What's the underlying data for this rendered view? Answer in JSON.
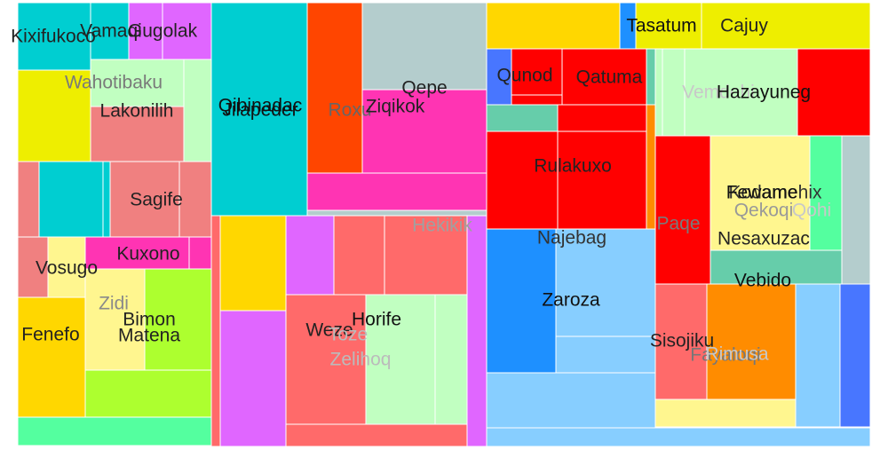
{
  "chart_data": {
    "type": "treemap",
    "title": "",
    "blocks": [
      {
        "id": "b01",
        "color": "#00CED1"
      },
      {
        "id": "b02",
        "color": "#00CED1"
      },
      {
        "id": "b03",
        "color": "#E066FF"
      },
      {
        "id": "b04",
        "color": "#E066FF"
      },
      {
        "id": "b05",
        "color": "#EEEE00"
      },
      {
        "id": "b06",
        "color": "#C1FFC1"
      },
      {
        "id": "b07",
        "color": "#C1FFC1"
      },
      {
        "id": "b08",
        "color": "#F08080"
      },
      {
        "id": "b09",
        "color": "#F08080"
      },
      {
        "id": "b10",
        "color": "#00CED1"
      },
      {
        "id": "b11",
        "color": "#00CED1"
      },
      {
        "id": "b12",
        "color": "#F08080"
      },
      {
        "id": "b13",
        "color": "#F08080"
      },
      {
        "id": "b14",
        "color": "#F08080"
      },
      {
        "id": "b15",
        "color": "#FFF68F"
      },
      {
        "id": "b16",
        "color": "#FF34B3"
      },
      {
        "id": "b17",
        "color": "#FF34B3"
      },
      {
        "id": "b18",
        "color": "#FFD700"
      },
      {
        "id": "b19",
        "color": "#FFF68F"
      },
      {
        "id": "b20",
        "color": "#ADFF2F"
      },
      {
        "id": "b21",
        "color": "#ADFF2F"
      },
      {
        "id": "b22",
        "color": "#54FF9F"
      },
      {
        "id": "b23",
        "color": "#00CED1"
      },
      {
        "id": "b24",
        "color": "#FF4500"
      },
      {
        "id": "b25",
        "color": "#B4CDCD"
      },
      {
        "id": "b26",
        "color": "#FF34B3"
      },
      {
        "id": "b27",
        "color": "#FF34B3"
      },
      {
        "id": "b28",
        "color": "#B4CDCD"
      },
      {
        "id": "b29",
        "color": "#FF6A6A"
      },
      {
        "id": "b30",
        "color": "#FFD700"
      },
      {
        "id": "b31",
        "color": "#E066FF"
      },
      {
        "id": "b32",
        "color": "#E066FF"
      },
      {
        "id": "b33",
        "color": "#FF6A6A"
      },
      {
        "id": "b34",
        "color": "#FF6A6A"
      },
      {
        "id": "b35",
        "color": "#FF6A6A"
      },
      {
        "id": "b36",
        "color": "#C1FFC1"
      },
      {
        "id": "b37",
        "color": "#C1FFC1"
      },
      {
        "id": "b38",
        "color": "#FF6A6A"
      },
      {
        "id": "b39",
        "color": "#E066FF"
      },
      {
        "id": "b40",
        "color": "#FFD700"
      },
      {
        "id": "b41",
        "color": "#1E90FF"
      },
      {
        "id": "b42",
        "color": "#EEEE00"
      },
      {
        "id": "b43",
        "color": "#EEEE00"
      },
      {
        "id": "b44",
        "color": "#4876FF"
      },
      {
        "id": "b45",
        "color": "#FF0000"
      },
      {
        "id": "b46",
        "color": "#FF0000"
      },
      {
        "id": "b47",
        "color": "#FF0000"
      },
      {
        "id": "b48",
        "color": "#66CDAA"
      },
      {
        "id": "b49",
        "color": "#66CDAA"
      },
      {
        "id": "b50",
        "color": "#FF0000"
      },
      {
        "id": "b51",
        "color": "#FF0000"
      },
      {
        "id": "b52",
        "color": "#FF0000"
      },
      {
        "id": "b53",
        "color": "#FF8C00"
      },
      {
        "id": "b54",
        "color": "#C1FFC1"
      },
      {
        "id": "b55",
        "color": "#C1FFC1"
      },
      {
        "id": "b56",
        "color": "#C1FFC1"
      },
      {
        "id": "b57",
        "color": "#FF0000"
      },
      {
        "id": "b58",
        "color": "#FF0000"
      },
      {
        "id": "b59",
        "color": "#FFF68F"
      },
      {
        "id": "b60",
        "color": "#54FF9F"
      },
      {
        "id": "b61",
        "color": "#B4CDCD"
      },
      {
        "id": "b62",
        "color": "#66CDAA"
      },
      {
        "id": "b63",
        "color": "#1E90FF"
      },
      {
        "id": "b64",
        "color": "#87CEFF"
      },
      {
        "id": "b65",
        "color": "#87CEFF"
      },
      {
        "id": "b66",
        "color": "#87CEFF"
      },
      {
        "id": "b67",
        "color": "#FF6A6A"
      },
      {
        "id": "b68",
        "color": "#FF8C00"
      },
      {
        "id": "b69",
        "color": "#87CEFF"
      },
      {
        "id": "b70",
        "color": "#4876FF"
      },
      {
        "id": "b71",
        "color": "#FFF68F"
      },
      {
        "id": "b72",
        "color": "#87CEFF"
      },
      {
        "id": "b73",
        "color": "#1E90FF"
      }
    ],
    "labels": [
      {
        "text": "Kixifukoco",
        "color": "#222222"
      },
      {
        "text": "Vamaqi",
        "color": "#222222"
      },
      {
        "text": "Gugolak",
        "color": "#222222"
      },
      {
        "text": "Wahotibaku",
        "color": "#7a7a7a"
      },
      {
        "text": "Lakonilih",
        "color": "#222222"
      },
      {
        "text": "Sagife",
        "color": "#222222"
      },
      {
        "text": "Kuxono",
        "color": "#222222"
      },
      {
        "text": "Vosugo",
        "color": "#222222"
      },
      {
        "text": "Zidi",
        "color": "#8a8a8a"
      },
      {
        "text": "Bimon",
        "color": "#222222"
      },
      {
        "text": "Matena",
        "color": "#222222"
      },
      {
        "text": "Fenefo",
        "color": "#222222"
      },
      {
        "text": "Qibinadac",
        "color": "#111111"
      },
      {
        "text": "Jilapeder",
        "color": "#111111"
      },
      {
        "text": "Roxu",
        "color": "#666666"
      },
      {
        "text": "Ziqikok",
        "color": "#222222"
      },
      {
        "text": "Qepe",
        "color": "#222222"
      },
      {
        "text": "Hekikik",
        "color": "#a0a0a0"
      },
      {
        "text": "Weze",
        "color": "#222222"
      },
      {
        "text": "Horife",
        "color": "#111111"
      },
      {
        "text": "Toze",
        "color": "#bbbbbb"
      },
      {
        "text": "Zelihoq",
        "color": "#bbbbbb"
      },
      {
        "text": "Tasatum",
        "color": "#111111"
      },
      {
        "text": "Cajuy",
        "color": "#222222"
      },
      {
        "text": "Qunod",
        "color": "#222222"
      },
      {
        "text": "Qatuma",
        "color": "#222222"
      },
      {
        "text": "Vemdehi",
        "color": "#c8c8c8"
      },
      {
        "text": "Hazayuneg",
        "color": "#111111"
      },
      {
        "text": "Rulakuxo",
        "color": "#222222"
      },
      {
        "text": "Paqe",
        "color": "#7a7a7a"
      },
      {
        "text": "Najebag",
        "color": "#333333"
      },
      {
        "text": "Zaroza",
        "color": "#111111"
      },
      {
        "text": "Kodamehix",
        "color": "#333333"
      },
      {
        "text": "Fewame",
        "color": "#111111"
      },
      {
        "text": "Qekoqi",
        "color": "#999999"
      },
      {
        "text": "Qohi",
        "color": "#c8c8c8"
      },
      {
        "text": "Nesaxuzac",
        "color": "#222222"
      },
      {
        "text": "Vebido",
        "color": "#111111"
      },
      {
        "text": "Sisojiku",
        "color": "#222222"
      },
      {
        "text": "Fayaloqi",
        "color": "#777777"
      },
      {
        "text": "Rimusa",
        "color": "#c8c8c8"
      }
    ]
  }
}
